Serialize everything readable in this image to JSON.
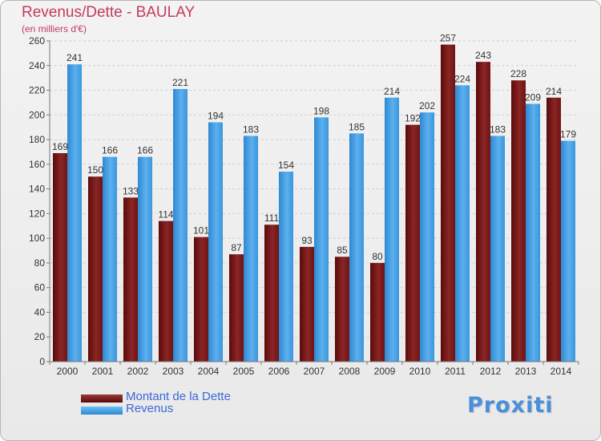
{
  "chart_data": {
    "type": "bar",
    "title": "Revenus/Dette - BAULAY",
    "subtitle": "(en milliers d'€)",
    "categories": [
      "2000",
      "2001",
      "2002",
      "2003",
      "2004",
      "2005",
      "2006",
      "2007",
      "2008",
      "2009",
      "2010",
      "2011",
      "2012",
      "2013",
      "2014"
    ],
    "series": [
      {
        "name": "Montant de la Dette",
        "color": "#7a1a1a",
        "values": [
          169,
          150,
          133,
          114,
          101,
          87,
          111,
          93,
          85,
          80,
          192,
          257,
          243,
          228,
          214
        ]
      },
      {
        "name": "Revenus",
        "color": "#3a96dc",
        "values": [
          241,
          166,
          166,
          221,
          194,
          183,
          154,
          198,
          185,
          214,
          202,
          224,
          183,
          209,
          179
        ]
      }
    ],
    "ylim": [
      0,
      260
    ],
    "yticks": [
      0,
      20,
      40,
      60,
      80,
      100,
      120,
      140,
      160,
      180,
      200,
      220,
      240,
      260
    ],
    "grid": true,
    "legend_position": "bottom-left"
  },
  "brand": "Proxiti"
}
